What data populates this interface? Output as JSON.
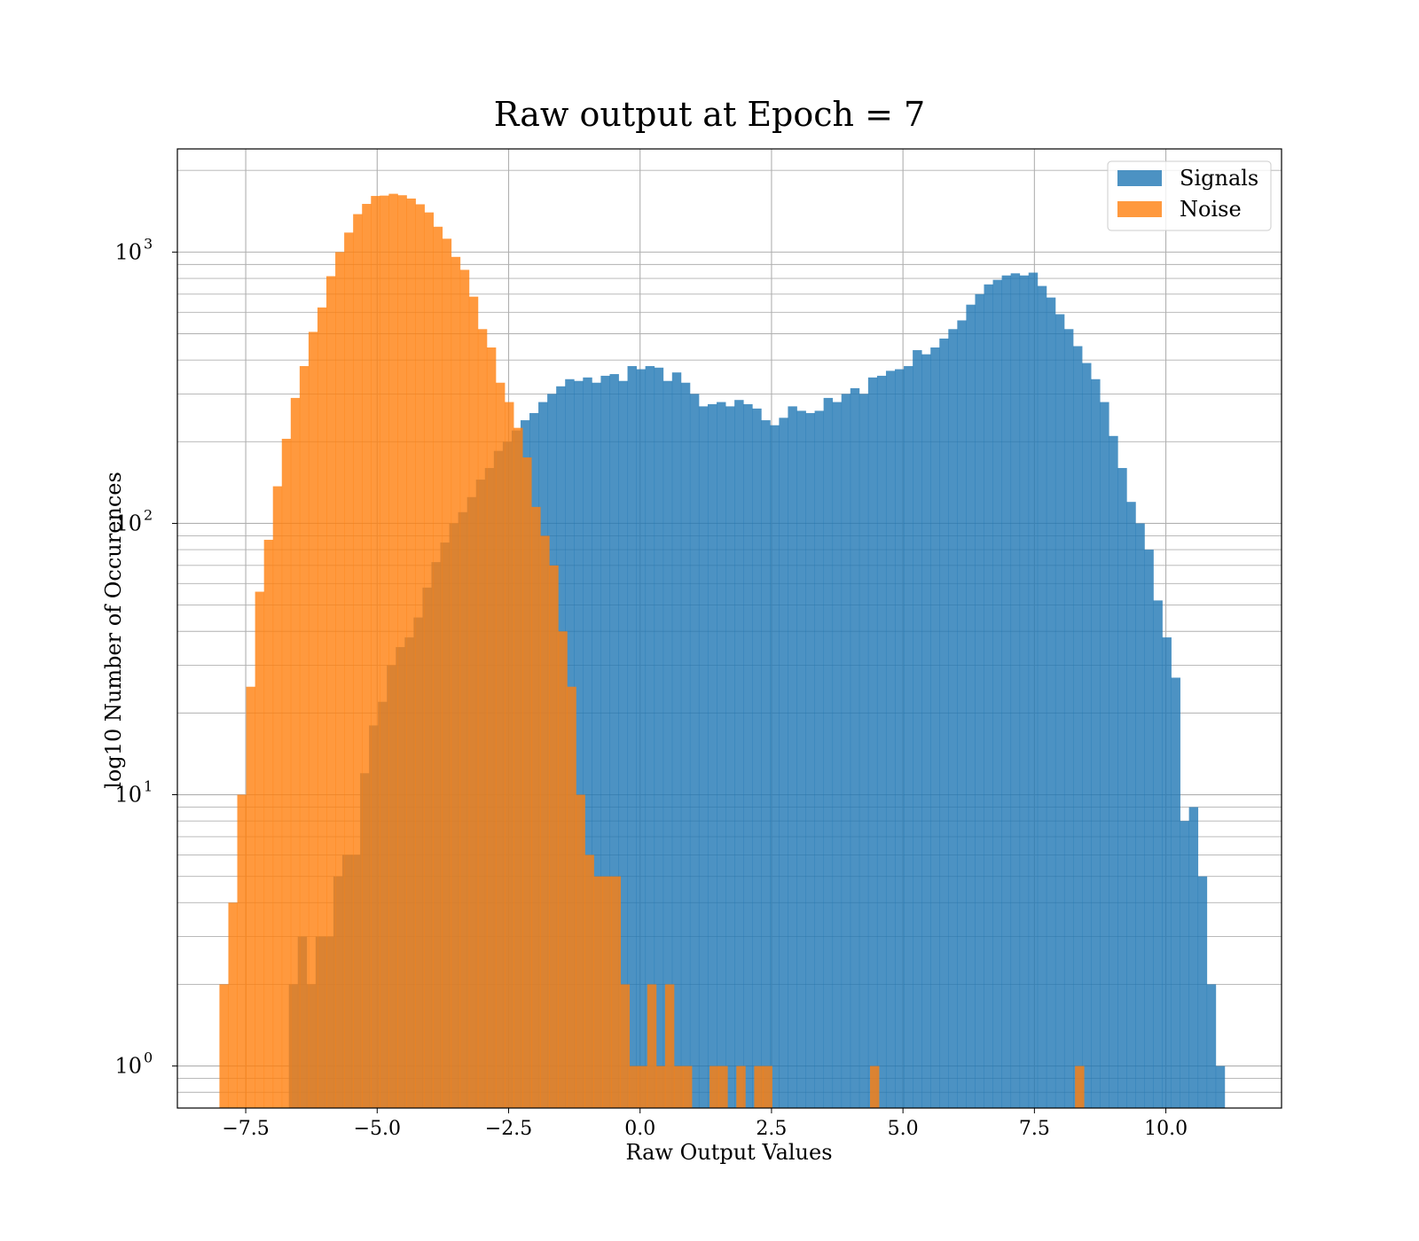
{
  "chart_data": {
    "type": "bar",
    "title": "Raw output at Epoch = 7",
    "xlabel": "Raw Output Values",
    "ylabel": "log10 Number of Occurences",
    "yscale": "log",
    "xlim": [
      -8.8,
      12.2
    ],
    "ylim": [
      0.7,
      2400
    ],
    "grid": true,
    "legend_position": "top-right",
    "x_ticks": [
      -7.5,
      -5.0,
      -2.5,
      0.0,
      2.5,
      5.0,
      7.5,
      10.0
    ],
    "x_tick_labels": [
      "−7.5",
      "−5.0",
      "−2.5",
      "0.0",
      "2.5",
      "5.0",
      "7.5",
      "10.0"
    ],
    "y_ticks": [
      1,
      10,
      100,
      1000
    ],
    "y_tick_labels": [
      {
        "base": "10",
        "exp": "0"
      },
      {
        "base": "10",
        "exp": "1"
      },
      {
        "base": "10",
        "exp": "2"
      },
      {
        "base": "10",
        "exp": "3"
      }
    ],
    "series": [
      {
        "name": "Signals",
        "color": "#1f77b4",
        "alpha": 0.8,
        "bin_start": -6.68,
        "bin_width": 0.1695,
        "values": [
          2,
          3,
          2,
          3,
          3,
          5,
          6,
          6,
          12,
          18,
          22,
          30,
          35,
          38,
          45,
          58,
          72,
          85,
          100,
          110,
          125,
          145,
          160,
          185,
          200,
          220,
          240,
          255,
          280,
          300,
          320,
          340,
          335,
          345,
          330,
          350,
          355,
          335,
          380,
          370,
          380,
          375,
          335,
          360,
          330,
          300,
          270,
          275,
          280,
          270,
          285,
          275,
          265,
          240,
          230,
          245,
          270,
          260,
          255,
          260,
          290,
          280,
          300,
          315,
          300,
          345,
          350,
          365,
          370,
          380,
          435,
          420,
          445,
          480,
          520,
          560,
          640,
          700,
          760,
          790,
          820,
          835,
          820,
          840,
          750,
          680,
          590,
          520,
          450,
          390,
          340,
          280,
          210,
          160,
          120,
          100,
          80,
          52,
          38,
          27,
          8,
          9,
          5,
          2,
          1
        ]
      },
      {
        "name": "Noise",
        "color": "#ff7f0e",
        "alpha": 0.8,
        "bin_start": -8.0,
        "bin_width": 0.1695,
        "values": [
          2,
          4,
          10,
          25,
          56,
          87,
          137,
          205,
          290,
          380,
          508,
          625,
          815,
          1000,
          1180,
          1380,
          1505,
          1610,
          1615,
          1640,
          1620,
          1575,
          1500,
          1400,
          1240,
          1120,
          960,
          860,
          685,
          520,
          445,
          330,
          280,
          225,
          175,
          115,
          90,
          70,
          40,
          25,
          10,
          6,
          5,
          5,
          5,
          2,
          1,
          1,
          2,
          1,
          2,
          1,
          1,
          0,
          0,
          1,
          1,
          0,
          1,
          0,
          1,
          1,
          0,
          0,
          0,
          0,
          0,
          0,
          0,
          0,
          0,
          0,
          0,
          1,
          0,
          0,
          0,
          0,
          0,
          0,
          0,
          0,
          0,
          0,
          0,
          0,
          0,
          0,
          0,
          0,
          0,
          0,
          0,
          0,
          0,
          0,
          1
        ]
      }
    ]
  }
}
